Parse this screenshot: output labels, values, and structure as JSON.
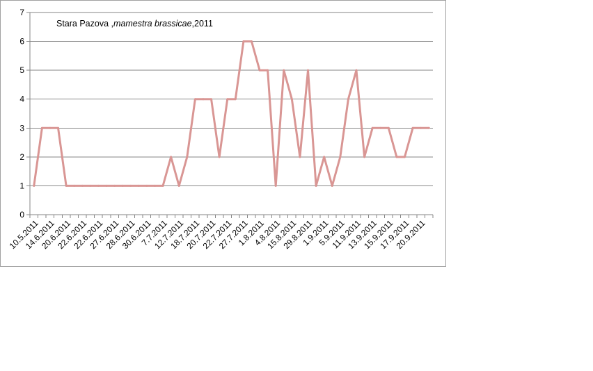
{
  "chart_data": {
    "type": "line",
    "title": {
      "location": "Stara Pazova ,",
      "species": "mamestra brassicae",
      "year": ",2011"
    },
    "ylim": [
      0,
      7
    ],
    "yticks": [
      0,
      1,
      2,
      3,
      4,
      5,
      6,
      7
    ],
    "grid": true,
    "line_color": "#d99694",
    "x_labels": [
      "10.5.2011",
      "14.6.2011",
      "20.6.2011",
      "22.6.2011",
      "22.6.2011",
      "27.6.2011",
      "28.6.2011",
      "30.6.2011",
      "7.7.2011",
      "12.7.2011",
      "18.7.2011",
      "20.7.2011",
      "22.7.2011",
      "27.7.2011",
      "1.8.2011",
      "4.8.2011",
      "15.8.2011",
      "29.8.2011",
      "1.9.2011",
      "5.9.2011",
      "11.9.2011",
      "13.9.2011",
      "15.9.2011",
      "17.9.2011",
      "20.9.2011"
    ],
    "values": [
      1,
      3,
      3,
      3,
      1,
      1,
      1,
      1,
      1,
      1,
      1,
      1,
      1,
      1,
      1,
      1,
      1,
      2,
      1,
      2,
      4,
      4,
      4,
      2,
      4,
      4,
      6,
      6,
      5,
      5,
      1,
      5,
      4,
      2,
      5,
      1,
      2,
      1,
      2,
      4,
      5,
      2,
      3,
      3,
      3,
      2,
      2,
      3,
      3,
      3
    ]
  }
}
